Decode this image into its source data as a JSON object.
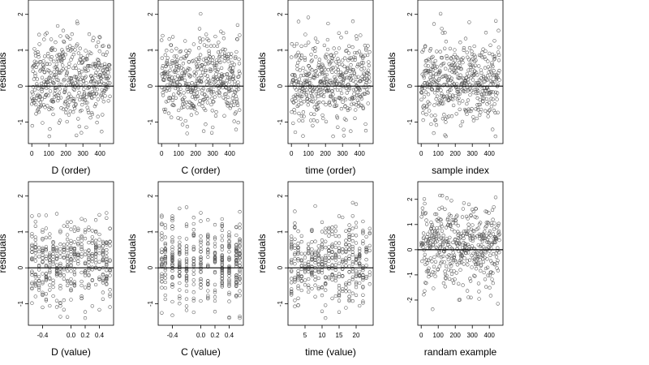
{
  "figure": {
    "background": "#ffffff",
    "point_color": "#555555",
    "axis_color": "#000000"
  },
  "chart_data": [
    {
      "type": "scatter",
      "xlabel": "D (order)",
      "ylabel": "residuals",
      "xlim": [
        -20,
        480
      ],
      "ylim": [
        -1.6,
        2.4
      ],
      "xticks": [
        0,
        100,
        200,
        300,
        400
      ],
      "xtick_labels": [
        "0",
        "100",
        "200",
        "300",
        "400"
      ],
      "yticks": [
        -1,
        0,
        1,
        2
      ],
      "ytick_labels": [
        "-1",
        "0",
        "1",
        "2"
      ],
      "hline": 0,
      "n_points": 460,
      "x_kind": "index",
      "y_range": [
        -1.4,
        2.3
      ],
      "seed": 11
    },
    {
      "type": "scatter",
      "xlabel": "C (order)",
      "ylabel": "residuals",
      "xlim": [
        -20,
        480
      ],
      "ylim": [
        -1.6,
        2.4
      ],
      "xticks": [
        0,
        100,
        200,
        300,
        400
      ],
      "xtick_labels": [
        "0",
        "100",
        "200",
        "300",
        "400"
      ],
      "yticks": [
        -1,
        0,
        1,
        2
      ],
      "ytick_labels": [
        "-1",
        "0",
        "1",
        "2"
      ],
      "hline": 0,
      "n_points": 460,
      "x_kind": "index",
      "y_range": [
        -1.4,
        2.3
      ],
      "seed": 23
    },
    {
      "type": "scatter",
      "xlabel": "time (order)",
      "ylabel": "residuals",
      "xlim": [
        -20,
        480
      ],
      "ylim": [
        -1.6,
        2.4
      ],
      "xticks": [
        0,
        100,
        200,
        300,
        400
      ],
      "xtick_labels": [
        "0",
        "100",
        "200",
        "300",
        "400"
      ],
      "yticks": [
        -1,
        0,
        1,
        2
      ],
      "ytick_labels": [
        "-1",
        "0",
        "1",
        "2"
      ],
      "hline": 0,
      "n_points": 460,
      "x_kind": "index",
      "y_range": [
        -1.4,
        2.3
      ],
      "seed": 37
    },
    {
      "type": "scatter",
      "xlabel": "sample index",
      "ylabel": "residuals",
      "xlim": [
        -20,
        480
      ],
      "ylim": [
        -1.6,
        2.4
      ],
      "xticks": [
        0,
        100,
        200,
        300,
        400
      ],
      "xtick_labels": [
        "0",
        "100",
        "200",
        "300",
        "400"
      ],
      "yticks": [
        -1,
        0,
        1,
        2
      ],
      "ytick_labels": [
        "-1",
        "0",
        "1",
        "2"
      ],
      "hline": 0,
      "n_points": 460,
      "x_kind": "index",
      "y_range": [
        -1.4,
        2.3
      ],
      "seed": 41
    },
    {
      "type": "scatter",
      "xlabel": "D (value)",
      "ylabel": "residuals",
      "xlim": [
        -0.6,
        0.6
      ],
      "ylim": [
        -1.6,
        2.4
      ],
      "xticks": [
        -0.4,
        0,
        0.2,
        0.4
      ],
      "xtick_labels": [
        "-0.4",
        "0.0",
        "0.2",
        "0.4"
      ],
      "yticks": [
        -1,
        0,
        1,
        2
      ],
      "ytick_labels": [
        "-1",
        "0",
        "1",
        "2"
      ],
      "hline": 0,
      "n_points": 420,
      "x_kind": "levels",
      "x_levels": [
        -0.55,
        -0.5,
        -0.45,
        -0.4,
        -0.35,
        -0.3,
        -0.25,
        -0.2,
        -0.15,
        -0.1,
        -0.05,
        0,
        0.05,
        0.1,
        0.15,
        0.2,
        0.25,
        0.3,
        0.35,
        0.4,
        0.45,
        0.5,
        0.55
      ],
      "y_range": [
        -1.4,
        2.3
      ],
      "seed": 53
    },
    {
      "type": "scatter",
      "xlabel": "C (value)",
      "ylabel": "residuals",
      "xlim": [
        -0.6,
        0.6
      ],
      "ylim": [
        -1.6,
        2.4
      ],
      "xticks": [
        -0.4,
        0,
        0.2,
        0.4
      ],
      "xtick_labels": [
        "-0.4",
        "0.0",
        "0.2",
        "0.4"
      ],
      "yticks": [
        -1,
        0,
        1,
        2
      ],
      "ytick_labels": [
        "-1",
        "0",
        "1",
        "2"
      ],
      "hline": 0,
      "n_points": 420,
      "x_kind": "levels",
      "x_levels": [
        -0.55,
        -0.5,
        -0.4,
        -0.3,
        -0.2,
        -0.1,
        0,
        0.1,
        0.2,
        0.3,
        0.4,
        0.5,
        0.55
      ],
      "y_range": [
        -1.4,
        2.3
      ],
      "seed": 61
    },
    {
      "type": "scatter",
      "xlabel": "time (value)",
      "ylabel": "residuals",
      "xlim": [
        0,
        25
      ],
      "ylim": [
        -1.6,
        2.4
      ],
      "xticks": [
        5,
        10,
        15,
        20
      ],
      "xtick_labels": [
        "5",
        "10",
        "15",
        "20"
      ],
      "yticks": [
        -1,
        0,
        1,
        2
      ],
      "ytick_labels": [
        "-1",
        "0",
        "1",
        "2"
      ],
      "hline": 0,
      "n_points": 420,
      "x_kind": "levels",
      "x_levels": [
        1,
        2,
        3,
        4,
        5,
        6,
        7,
        8,
        9,
        10,
        11,
        12,
        13,
        14,
        15,
        16,
        17,
        18,
        19,
        20,
        21,
        22,
        23,
        24
      ],
      "y_range": [
        -1.4,
        2.3
      ],
      "seed": 71
    },
    {
      "type": "scatter",
      "xlabel": "randam example",
      "ylabel": "residuals",
      "xlim": [
        -20,
        480
      ],
      "ylim": [
        -3,
        2.7
      ],
      "xticks": [
        0,
        100,
        200,
        300,
        400
      ],
      "xtick_labels": [
        "0",
        "100",
        "200",
        "300",
        "400"
      ],
      "yticks": [
        -2,
        -1,
        0,
        1,
        2
      ],
      "ytick_labels": [
        "-2",
        "-1",
        "0",
        "1",
        "2"
      ],
      "hline": 0,
      "n_points": 460,
      "x_kind": "index",
      "y_range": [
        -2.7,
        2.5
      ],
      "seed": 89
    }
  ]
}
